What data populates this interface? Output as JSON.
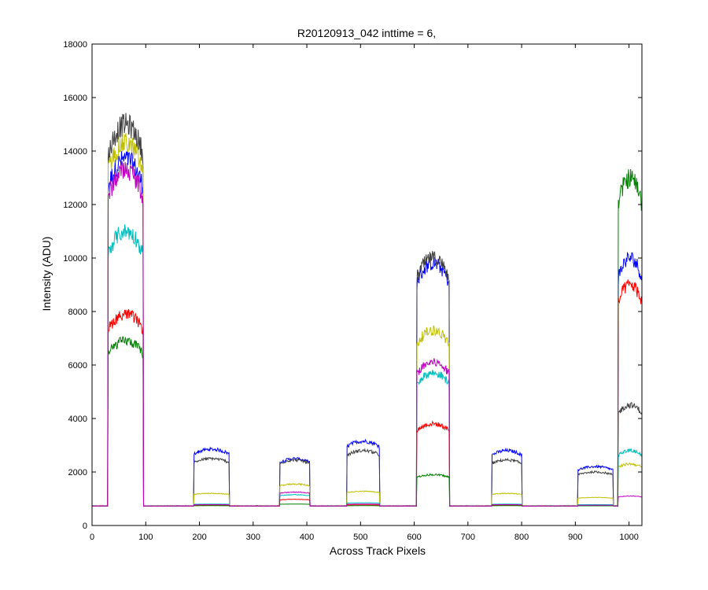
{
  "chart_data": {
    "type": "line",
    "title": "R20120913_042 inttime = 6,",
    "xlabel": "Across Track Pixels",
    "ylabel": "Intensity (ADU)",
    "xlim": [
      0,
      1024
    ],
    "ylim": [
      0,
      18000
    ],
    "xticks": [
      0,
      100,
      200,
      300,
      400,
      500,
      600,
      700,
      800,
      900,
      1000
    ],
    "yticks": [
      0,
      2000,
      4000,
      6000,
      8000,
      10000,
      12000,
      14000,
      16000,
      18000
    ],
    "grid": false,
    "baseline": 730,
    "series": [
      {
        "color": "#0000ff",
        "blocks": [
          [
            30,
            95,
            13700
          ],
          [
            190,
            255,
            2850
          ],
          [
            350,
            405,
            2500
          ],
          [
            475,
            535,
            3150
          ],
          [
            605,
            665,
            9800
          ],
          [
            745,
            800,
            2800
          ],
          [
            905,
            970,
            2200
          ],
          [
            980,
            1024,
            10000
          ]
        ]
      },
      {
        "color": "#404040",
        "blocks": [
          [
            30,
            95,
            15000
          ],
          [
            190,
            255,
            2500
          ],
          [
            350,
            405,
            2450
          ],
          [
            475,
            535,
            2800
          ],
          [
            605,
            665,
            10000
          ],
          [
            745,
            800,
            2450
          ],
          [
            905,
            970,
            2000
          ],
          [
            980,
            1024,
            4500
          ]
        ]
      },
      {
        "color": "#bfbf00",
        "blocks": [
          [
            30,
            95,
            14300
          ],
          [
            190,
            255,
            1200
          ],
          [
            350,
            405,
            1550
          ],
          [
            475,
            535,
            1280
          ],
          [
            605,
            665,
            7300
          ],
          [
            745,
            800,
            1200
          ],
          [
            905,
            970,
            1050
          ],
          [
            980,
            1024,
            2300
          ]
        ]
      },
      {
        "color": "#00bfbf",
        "blocks": [
          [
            30,
            95,
            11000
          ],
          [
            190,
            255,
            800
          ],
          [
            350,
            405,
            1150
          ],
          [
            475,
            535,
            850
          ],
          [
            605,
            665,
            5700
          ],
          [
            745,
            800,
            800
          ],
          [
            905,
            970,
            780
          ],
          [
            980,
            1024,
            2800
          ]
        ]
      },
      {
        "color": "#ff0000",
        "blocks": [
          [
            30,
            95,
            7900
          ],
          [
            190,
            255,
            760
          ],
          [
            350,
            405,
            980
          ],
          [
            475,
            535,
            770
          ],
          [
            605,
            665,
            3800
          ],
          [
            745,
            800,
            760
          ],
          [
            905,
            970,
            750
          ],
          [
            980,
            1024,
            9000
          ]
        ]
      },
      {
        "color": "#007f00",
        "blocks": [
          [
            30,
            95,
            6900
          ],
          [
            190,
            255,
            740
          ],
          [
            350,
            405,
            800
          ],
          [
            475,
            535,
            740
          ],
          [
            605,
            665,
            1900
          ],
          [
            745,
            800,
            740
          ],
          [
            905,
            970,
            735
          ],
          [
            980,
            1024,
            13000
          ]
        ]
      },
      {
        "color": "#bf00bf",
        "blocks": [
          [
            30,
            95,
            13300
          ],
          [
            190,
            255,
            780
          ],
          [
            350,
            405,
            1250
          ],
          [
            475,
            535,
            800
          ],
          [
            605,
            665,
            6100
          ],
          [
            745,
            800,
            780
          ],
          [
            905,
            970,
            760
          ],
          [
            980,
            1024,
            1100
          ]
        ]
      }
    ]
  }
}
